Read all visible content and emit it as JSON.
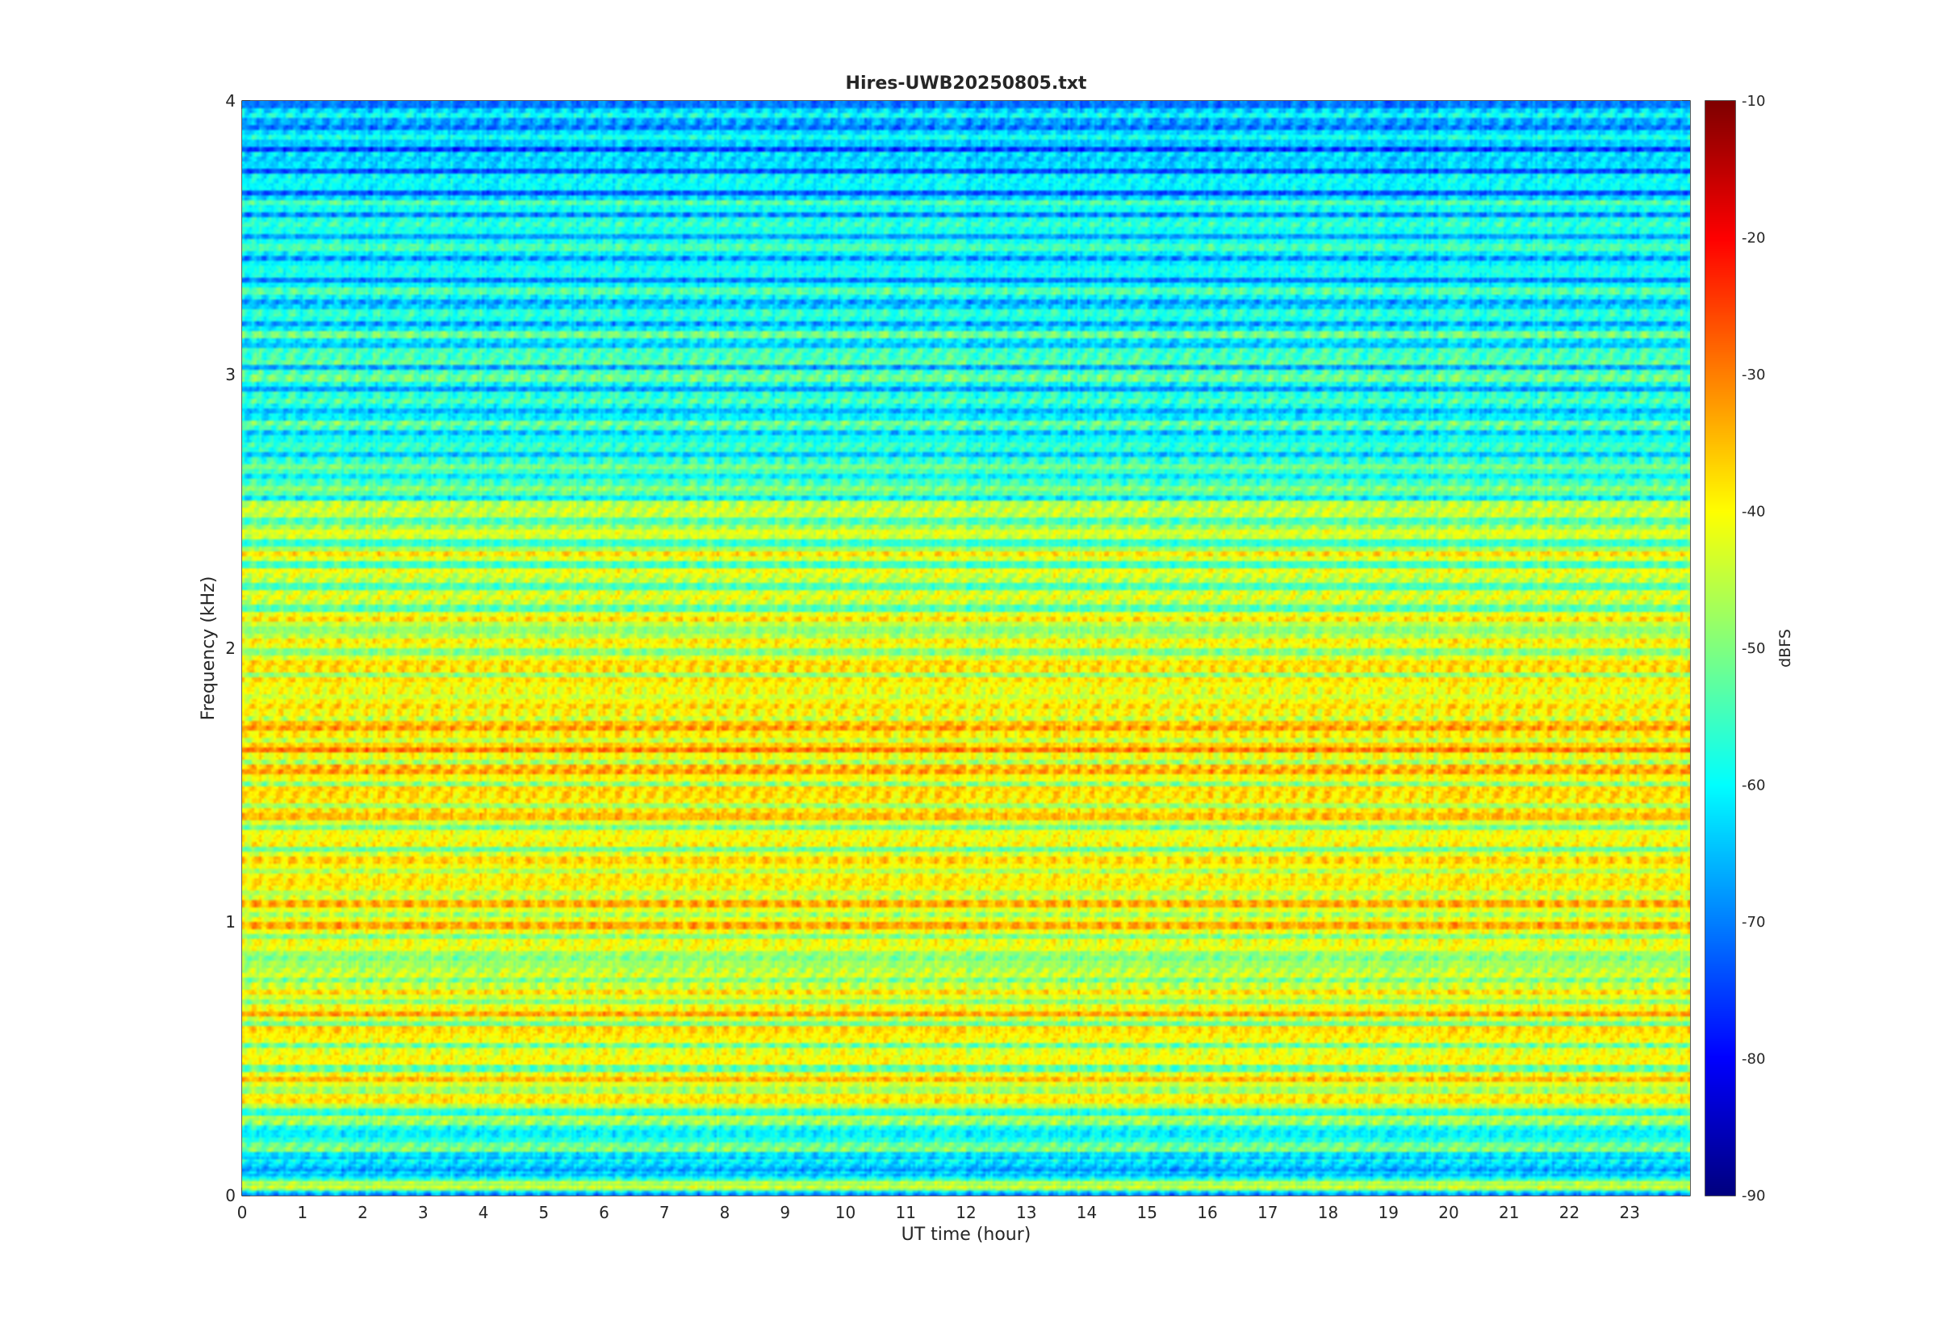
{
  "chart_data": {
    "type": "heatmap",
    "title": "Hires-UWB20250805.txt",
    "xlabel": "UT time (hour)",
    "ylabel": "Frequency (kHz)",
    "xlim": [
      0,
      24
    ],
    "ylim": [
      0,
      4
    ],
    "x_ticks": [
      "0",
      "1",
      "2",
      "3",
      "4",
      "5",
      "6",
      "7",
      "8",
      "9",
      "10",
      "11",
      "12",
      "13",
      "14",
      "15",
      "16",
      "17",
      "18",
      "19",
      "20",
      "21",
      "22",
      "23"
    ],
    "y_ticks": [
      "0",
      "1",
      "2",
      "3",
      "4"
    ],
    "colormap": "jet",
    "colorbar": {
      "label": "dBFS",
      "clim": [
        -90,
        -10
      ],
      "ticks": [
        "-10",
        "-20",
        "-30",
        "-40",
        "-50",
        "-60",
        "-70",
        "-80",
        "-90"
      ]
    },
    "band_levels_dbfs": [
      {
        "freq_khz": 0.0,
        "level": -75
      },
      {
        "freq_khz": 0.05,
        "level": -40
      },
      {
        "freq_khz": 0.1,
        "level": -68
      },
      {
        "freq_khz": 0.15,
        "level": -52
      },
      {
        "freq_khz": 0.25,
        "level": -55
      },
      {
        "freq_khz": 0.35,
        "level": -40
      },
      {
        "freq_khz": 0.45,
        "level": -40
      },
      {
        "freq_khz": 0.55,
        "level": -45
      },
      {
        "freq_khz": 0.65,
        "level": -39
      },
      {
        "freq_khz": 0.75,
        "level": -46
      },
      {
        "freq_khz": 0.85,
        "level": -46
      },
      {
        "freq_khz": 0.95,
        "level": -42
      },
      {
        "freq_khz": 1.05,
        "level": -40
      },
      {
        "freq_khz": 1.25,
        "level": -41
      },
      {
        "freq_khz": 1.45,
        "level": -41
      },
      {
        "freq_khz": 1.55,
        "level": -37
      },
      {
        "freq_khz": 1.65,
        "level": -37
      },
      {
        "freq_khz": 1.75,
        "level": -38
      },
      {
        "freq_khz": 1.85,
        "level": -40
      },
      {
        "freq_khz": 1.95,
        "level": -42
      },
      {
        "freq_khz": 2.2,
        "level": -44
      },
      {
        "freq_khz": 2.45,
        "level": -45
      },
      {
        "freq_khz": 2.7,
        "level": -58
      },
      {
        "freq_khz": 3.0,
        "level": -56
      },
      {
        "freq_khz": 3.25,
        "level": -60
      },
      {
        "freq_khz": 3.55,
        "level": -60
      },
      {
        "freq_khz": 3.8,
        "level": -65
      },
      {
        "freq_khz": 4.0,
        "level": -64
      }
    ]
  }
}
